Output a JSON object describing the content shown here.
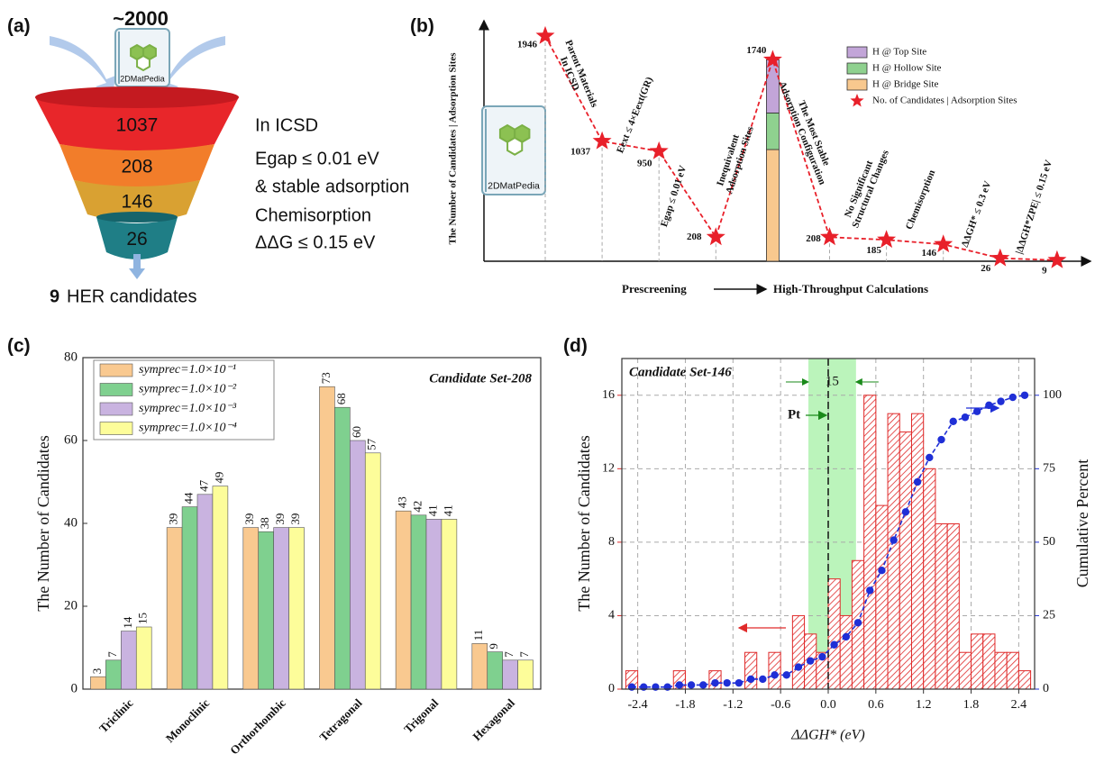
{
  "chart_data": [
    {
      "type": "funnel",
      "panel": "(a)",
      "source_count": 2000,
      "source_count_label": "~2000",
      "icon_label": "2DMatPedia",
      "values": [
        1037,
        208,
        146,
        26
      ],
      "colors": [
        "#e8262a",
        "#f27d2a",
        "#d9a132",
        "#1f7e86"
      ],
      "stage_labels": [
        "In ICSD",
        "Egap ≤ 0.01 eV",
        "& stable adsorption",
        "Chemisorption",
        "ΔΔG ≤ 0.15 eV"
      ],
      "result_count": 9,
      "result_label": "HER candidates"
    },
    {
      "type": "line",
      "panel": "(b)",
      "icon_label": "2DMatPedia",
      "y_label": "The Number of Candidates | Adsorption Sites",
      "x_label_start": "Prescreening",
      "x_label_end": "High-Throughput Calculations",
      "ylim": [
        0,
        2000
      ],
      "series": [
        {
          "name": "No. of Candidates | Adsorption Sites",
          "color": "#e8202a",
          "values": [
            1946,
            1037,
            950,
            208,
            1740,
            208,
            185,
            146,
            26,
            9
          ]
        }
      ],
      "step_labels": [
        [
          "Parent Materials",
          "In ICSD"
        ],
        [
          "Eext ≤ 4×Eext(GR)"
        ],
        [
          "Egap ≤ 0.01 eV"
        ],
        [
          "Inequivalent",
          "Adsorption Sites"
        ],
        [
          "The Most Stable",
          "Adsorption Configuration"
        ],
        [
          "No Significant",
          "Structural Changes"
        ],
        [
          "Chemisorption"
        ],
        [
          "ΔΔGH* ≤ 0.3 eV"
        ],
        [
          "|ΔΔGH*ZPE| ≤ 0.15 eV"
        ]
      ],
      "bar_index": 4,
      "bar_series": [
        {
          "name": "H @ Top Site",
          "color": "#c2a5d8",
          "value": 459
        },
        {
          "name": "H @ Hollow Site",
          "color": "#8fd18f",
          "value": 316
        },
        {
          "name": "H @ Bridge Site",
          "color": "#f8c88e",
          "value": 965
        }
      ]
    },
    {
      "type": "bar",
      "panel": "(c)",
      "annotation": "Candidate Set-208",
      "y_label": "The Number of Candidates",
      "categories": [
        "Triclinic",
        "Monoclinic",
        "Orthorhombic",
        "Tetragonal",
        "Trigonal",
        "Hexagonal"
      ],
      "series": [
        {
          "name": "symprec=1.0×10⁻¹",
          "color": "#f9c990",
          "values": [
            3,
            39,
            39,
            73,
            43,
            11
          ]
        },
        {
          "name": "symprec=1.0×10⁻²",
          "color": "#7fd08f",
          "values": [
            7,
            44,
            38,
            68,
            42,
            9
          ]
        },
        {
          "name": "symprec=1.0×10⁻³",
          "color": "#c9b3e0",
          "values": [
            14,
            47,
            39,
            60,
            41,
            7
          ]
        },
        {
          "name": "symprec=1.0×10⁻⁴",
          "color": "#fdfd9a",
          "values": [
            15,
            49,
            39,
            57,
            41,
            7
          ]
        }
      ],
      "ylim": [
        0,
        80
      ],
      "yticks": [
        0,
        20,
        40,
        60,
        80
      ]
    },
    {
      "type": "histogram",
      "panel": "(d)",
      "annotation": "Candidate Set-146",
      "x_label": "ΔΔGH* (eV)",
      "y_label": "The Number of Candidates",
      "y2_label": "Cumulative Percent",
      "bins": [
        -2.55,
        -2.4,
        -2.25,
        -2.1,
        -1.95,
        -1.8,
        -1.65,
        -1.5,
        -1.35,
        -1.2,
        -1.05,
        -0.9,
        -0.75,
        -0.6,
        -0.45,
        -0.3,
        -0.15,
        0,
        0.15,
        0.3,
        0.45,
        0.6,
        0.75,
        0.9,
        1.05,
        1.2,
        1.35,
        1.5,
        1.65,
        1.8,
        1.95,
        2.1,
        2.25,
        2.4,
        2.55
      ],
      "counts": [
        1,
        0,
        0,
        0,
        1,
        0,
        0,
        1,
        0,
        0,
        2,
        0,
        2,
        0,
        4,
        3,
        2,
        6,
        4,
        7,
        16,
        10,
        15,
        14,
        15,
        12,
        9,
        9,
        2,
        3,
        3,
        2,
        2,
        1
      ],
      "color": "#e02a2a",
      "cumulative": {
        "color": "#1f2fd6",
        "axis": "y2",
        "x": [
          -2.475,
          -2.325,
          -2.175,
          -2.025,
          -1.875,
          -1.725,
          -1.575,
          -1.425,
          -1.275,
          -1.125,
          -0.975,
          -0.825,
          -0.675,
          -0.525,
          -0.375,
          -0.225,
          -0.075,
          0.075,
          0.225,
          0.375,
          0.525,
          0.675,
          0.825,
          0.975,
          1.125,
          1.275,
          1.425,
          1.575,
          1.725,
          1.875,
          2.025,
          2.175,
          2.325,
          2.475
        ],
        "values": [
          0.7,
          0.7,
          0.7,
          0.7,
          1.4,
          1.4,
          1.4,
          2.1,
          2.1,
          2.1,
          3.4,
          3.4,
          4.8,
          4.8,
          7.5,
          9.6,
          11,
          15.1,
          17.8,
          22.6,
          33.6,
          40.4,
          50.7,
          60.3,
          70.5,
          78.8,
          84.9,
          91.1,
          92.5,
          94.5,
          96.6,
          97.9,
          99.3,
          100
        ]
      },
      "band": [
        -0.25,
        0.35
      ],
      "band_color": "#9ef09e",
      "band_count": 15,
      "pt_label": "Pt",
      "pt_x": 0,
      "xlim": [
        -2.6,
        2.6
      ],
      "xticks": [
        -2.4,
        -1.8,
        -1.2,
        -0.6,
        {
          "value": 0,
          "label": "0.0"
        },
        0.6,
        1.2,
        1.8,
        2.4
      ],
      "ylim": [
        0,
        18
      ],
      "yticks": [
        0,
        4,
        8,
        12,
        16
      ],
      "y2lim": [
        0,
        112.5
      ],
      "y2ticks": [
        0,
        25,
        50,
        75,
        100
      ],
      "grid": true
    }
  ]
}
